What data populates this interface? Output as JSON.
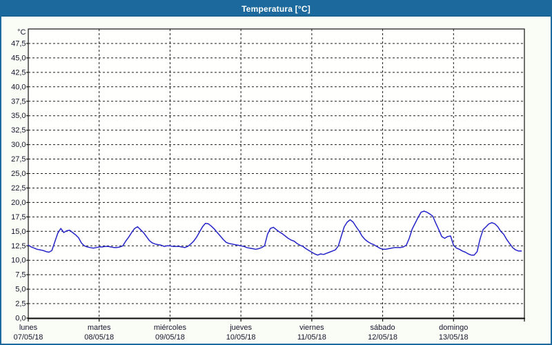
{
  "window": {
    "title": "Temperatura [°C]"
  },
  "colors": {
    "title_bar": "#1c6a9d",
    "window_border": "#1c6a9d",
    "line": "#2323c8",
    "plot_background": "#fffffe",
    "content_background": "#fafcf6",
    "grid": "#1a1a1a",
    "label_text": "#14142c"
  },
  "chart_data": {
    "type": "line",
    "title": "Temperatura [°C]",
    "unit": "°C",
    "xlabel": "",
    "ylabel": "°C",
    "ylim": [
      0,
      50
    ],
    "y_tick_step": 2.5,
    "y_tick_labels": [
      "0,0",
      "2,5",
      "5,0",
      "7,5",
      "10,0",
      "12,5",
      "15,0",
      "17,5",
      "20,0",
      "22,5",
      "25,0",
      "27,5",
      "30,0",
      "32,5",
      "35,0",
      "37,5",
      "40,0",
      "42,5",
      "45,0",
      "47,5"
    ],
    "x_days": [
      {
        "name": "lunes",
        "date": "07/05/18"
      },
      {
        "name": "martes",
        "date": "08/05/18"
      },
      {
        "name": "miércoles",
        "date": "09/05/18"
      },
      {
        "name": "jueves",
        "date": "10/05/18"
      },
      {
        "name": "viernes",
        "date": "11/05/18"
      },
      {
        "name": "sábado",
        "date": "12/05/18"
      },
      {
        "name": "domingo",
        "date": "13/05/18"
      }
    ],
    "sample_interval_hours": 1,
    "grid": "dashed",
    "legend": "none",
    "series": [
      {
        "name": "Temperatura",
        "unit": "°C",
        "color": "#2323c8",
        "values": [
          12.6,
          12.3,
          12.1,
          11.9,
          11.8,
          11.7,
          11.5,
          11.4,
          11.7,
          13.2,
          14.7,
          15.5,
          14.8,
          15.1,
          15.2,
          14.8,
          14.4,
          13.9,
          13.0,
          12.5,
          12.3,
          12.2,
          12.1,
          12.2,
          12.3,
          12.3,
          12.4,
          12.4,
          12.3,
          12.2,
          12.2,
          12.3,
          12.5,
          13.3,
          14.0,
          14.8,
          15.5,
          15.8,
          15.3,
          14.8,
          14.1,
          13.4,
          13.0,
          12.8,
          12.7,
          12.6,
          12.4,
          12.5,
          12.5,
          12.4,
          12.4,
          12.4,
          12.3,
          12.2,
          12.4,
          12.8,
          13.3,
          14.0,
          14.9,
          15.8,
          16.4,
          16.3,
          15.9,
          15.4,
          14.8,
          14.2,
          13.6,
          13.1,
          12.9,
          12.8,
          12.7,
          12.6,
          12.5,
          12.4,
          12.2,
          12.1,
          12.0,
          11.9,
          12.0,
          12.2,
          12.5,
          14.5,
          15.5,
          15.7,
          15.3,
          14.9,
          14.6,
          14.2,
          13.8,
          13.5,
          13.3,
          12.9,
          12.6,
          12.4,
          12.0,
          11.7,
          11.4,
          11.1,
          10.9,
          11.1,
          11.0,
          11.2,
          11.4,
          11.6,
          11.8,
          12.5,
          14.2,
          15.8,
          16.6,
          17.0,
          16.6,
          15.8,
          15.1,
          14.2,
          13.6,
          13.2,
          12.9,
          12.7,
          12.4,
          12.1,
          11.9,
          11.9,
          12.0,
          12.1,
          12.2,
          12.2,
          12.2,
          12.3,
          12.6,
          13.8,
          15.4,
          16.4,
          17.4,
          18.3,
          18.5,
          18.3,
          18.0,
          17.6,
          16.4,
          15.3,
          14.1,
          13.8,
          14.1,
          14.2,
          12.6,
          12.1,
          11.9,
          11.6,
          11.4,
          11.1,
          10.9,
          10.9,
          11.5,
          13.7,
          15.3,
          15.8,
          16.3,
          16.5,
          16.3,
          15.8,
          15.0,
          14.5,
          13.6,
          12.9,
          12.2,
          11.8,
          11.6,
          11.6
        ]
      }
    ]
  }
}
